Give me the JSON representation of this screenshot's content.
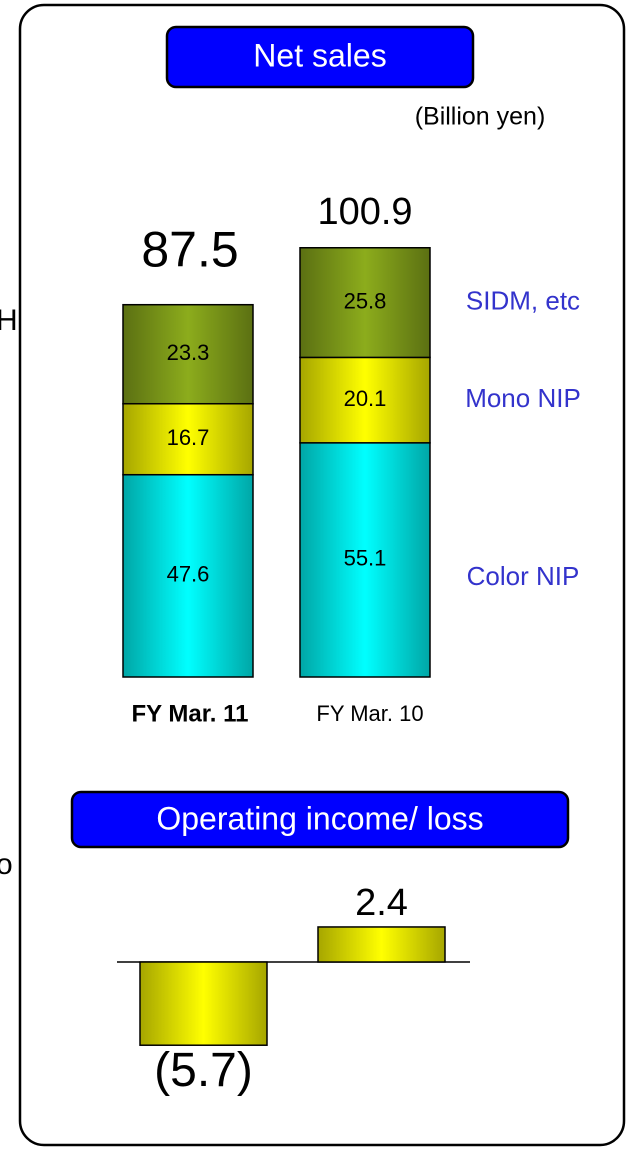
{
  "side_text": [
    "H",
    "o"
  ],
  "chart_data": [
    {
      "type": "stacked-bar",
      "title": "Net sales",
      "subtitle": "(Billion yen)",
      "categories": [
        "FY Mar. 11",
        "FY Mar. 10"
      ],
      "series": [
        {
          "name": "Color NIP",
          "color": "#00ffff",
          "values": [
            47.6,
            55.1
          ]
        },
        {
          "name": "Mono NIP",
          "color": "#ffff00",
          "values": [
            16.7,
            20.1
          ]
        },
        {
          "name": "SIDM, etc",
          "color": "#8cac1c",
          "values": [
            23.3,
            25.8
          ]
        }
      ],
      "totals": [
        87.5,
        100.9
      ],
      "legend_color": "#3333cc"
    },
    {
      "type": "bar",
      "title": "Operating income/ loss",
      "values": [
        -5.7,
        2.4
      ],
      "value_labels": [
        "(5.7)",
        "2.4"
      ],
      "color": "#ffff00"
    }
  ]
}
